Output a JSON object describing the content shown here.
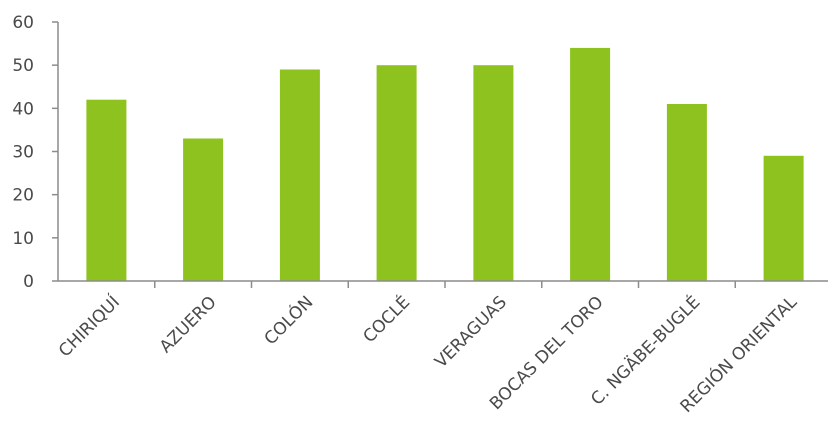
{
  "chart_data": {
    "type": "bar",
    "categories": [
      "CHIRIQUÍ",
      "AZUERO",
      "COLÓN",
      "COCLÉ",
      "VERAGUAS",
      "BOCAS DEL TORO",
      "C. NGÄBE-BUGLÉ",
      "REGIÓN ORIENTAL"
    ],
    "values": [
      42,
      33,
      49,
      50,
      50,
      54,
      41,
      29
    ],
    "ylim": [
      0,
      60
    ],
    "yticks": [
      0,
      10,
      20,
      30,
      40,
      50,
      60
    ],
    "grid": false,
    "legend": "none",
    "bar_color": "#8dc21f",
    "title": "",
    "xlabel": "",
    "ylabel": ""
  }
}
